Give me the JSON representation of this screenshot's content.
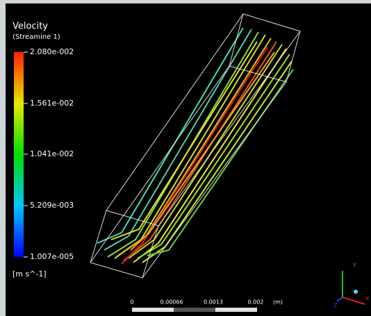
{
  "legend": {
    "title": "Velocity",
    "subtitle": "(Streamine  1)",
    "labels": [
      "2.080e-002",
      "1.561e-002",
      "1.041e-002",
      "5.209e-003",
      "1.007e-005"
    ],
    "unit": "[m s^-1]"
  },
  "scale_bar": {
    "labels": [
      "0",
      "0.00066",
      "0.0013",
      "0.002",
      "(m)"
    ]
  },
  "axes": {
    "labels": [
      "Y",
      "X",
      "Z"
    ]
  }
}
